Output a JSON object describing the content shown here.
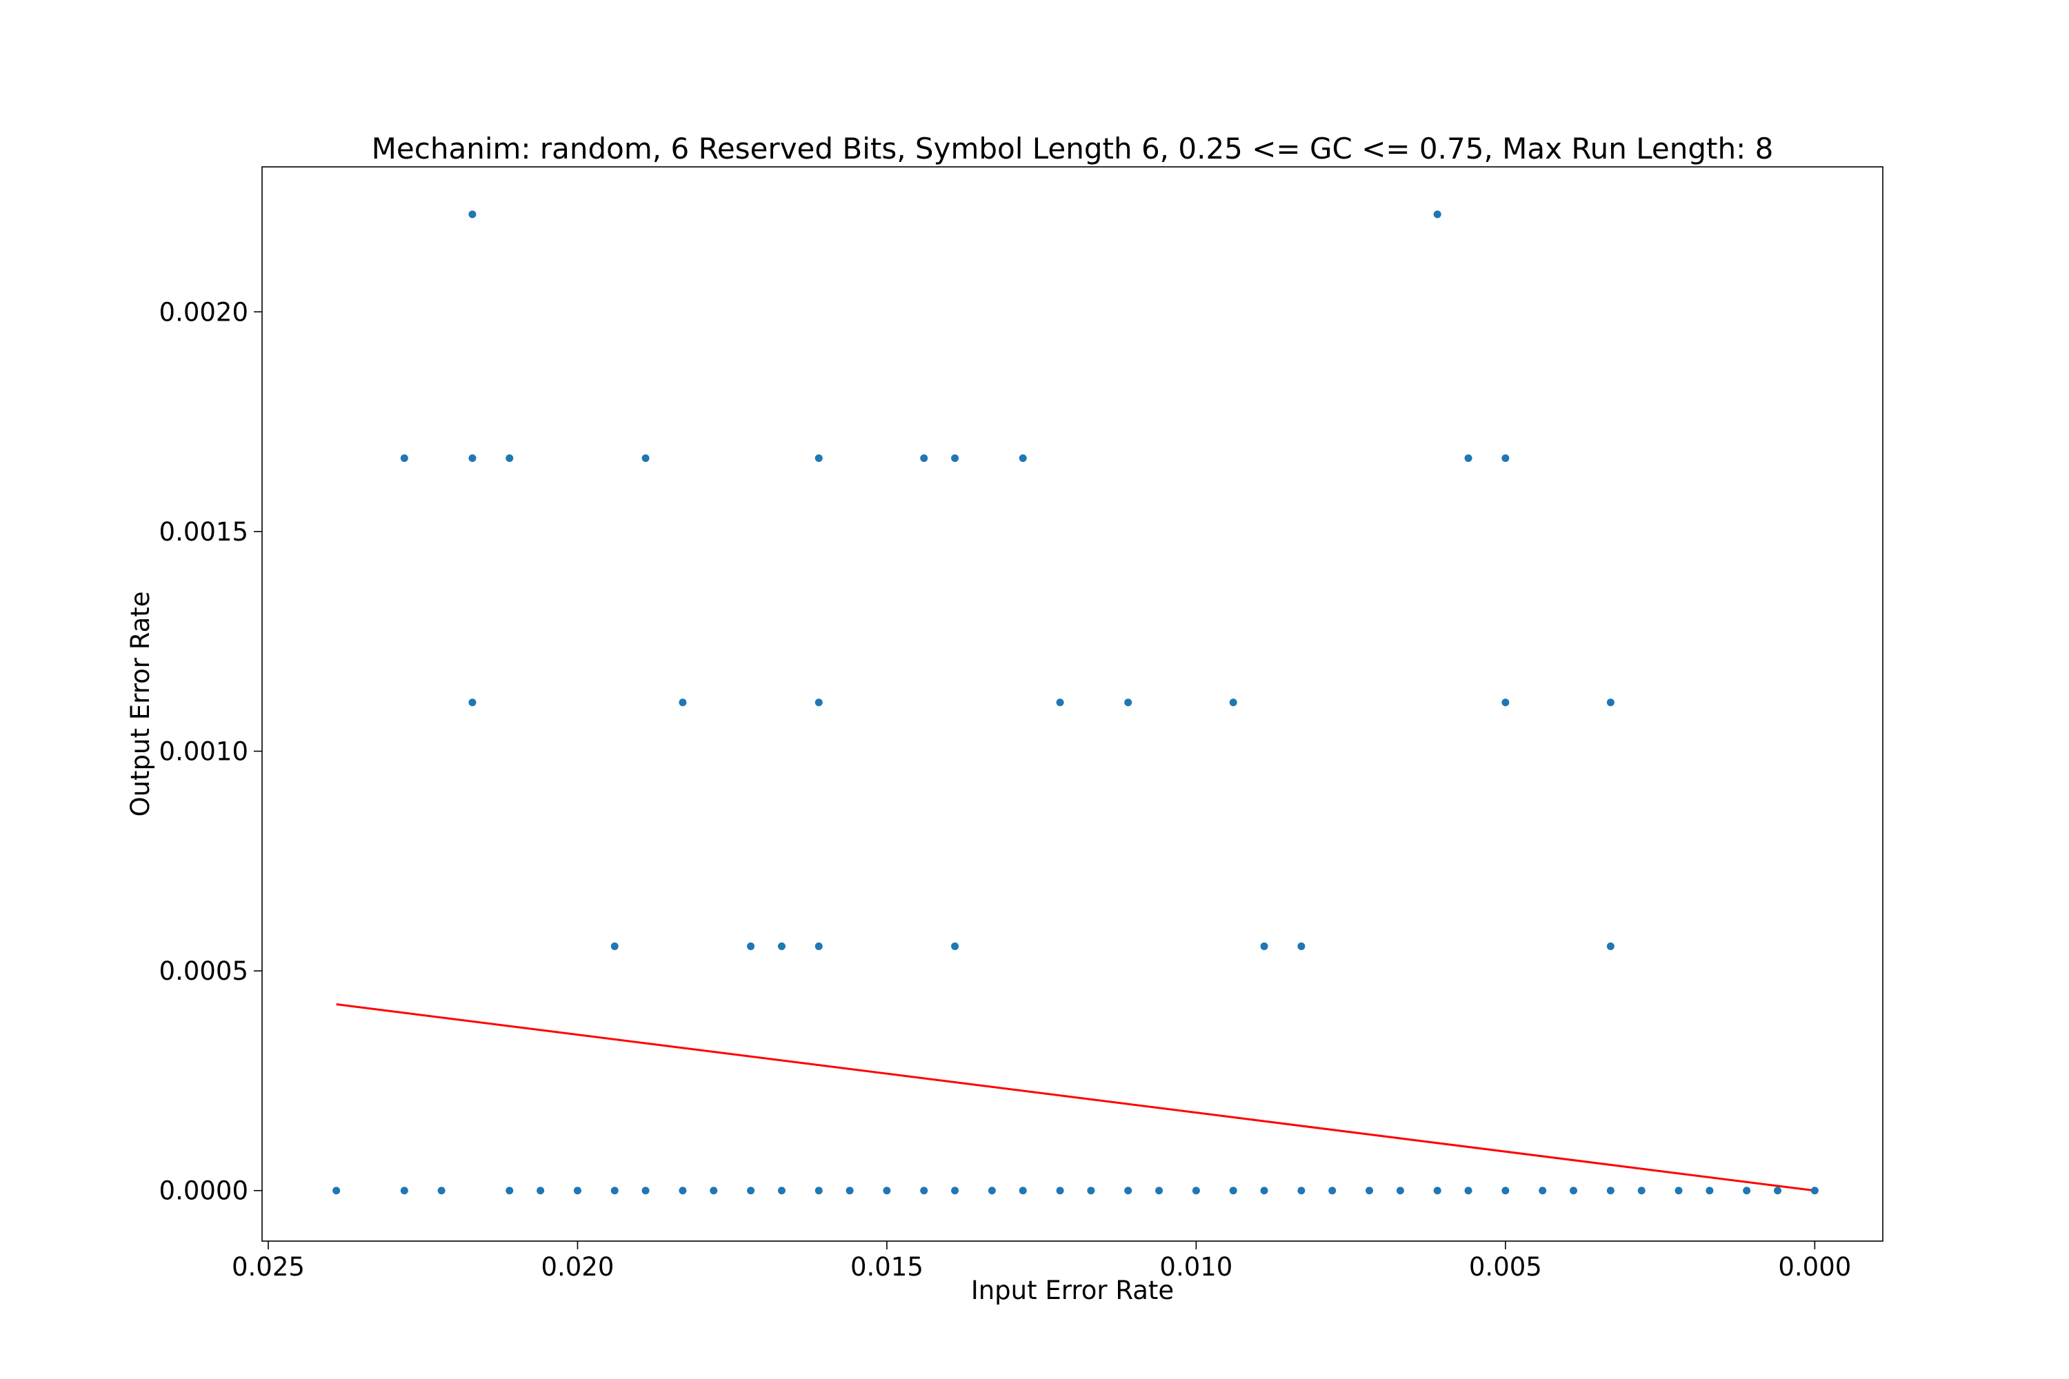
{
  "chart_data": {
    "type": "scatter",
    "title": "Mechanim: random, 6 Reserved Bits, Symbol Length 6, 0.25 <= GC <= 0.75, Max Run Length: 8",
    "xlabel": "Input Error Rate",
    "ylabel": "Output Error Rate",
    "xlim": [
      0.0251,
      -0.0011
    ],
    "ylim": [
      -0.000115,
      0.00233
    ],
    "x_inverted": true,
    "grid": false,
    "xticks": [
      0.025,
      0.02,
      0.015,
      0.01,
      0.005,
      0.0
    ],
    "xtick_labels": [
      "0.025",
      "0.020",
      "0.015",
      "0.010",
      "0.005",
      "0.000"
    ],
    "yticks": [
      0.0,
      0.0005,
      0.001,
      0.0015,
      0.002
    ],
    "ytick_labels": [
      "0.0000",
      "0.0005",
      "0.0010",
      "0.0015",
      "0.0020"
    ],
    "colors": {
      "points": "#1f77b4",
      "trend": "#ff0000"
    },
    "series": [
      {
        "kind": "scatter",
        "points": [
          [
            0.0239,
            0
          ],
          [
            0.0228,
            0
          ],
          [
            0.0222,
            0
          ],
          [
            0.0211,
            0
          ],
          [
            0.0206,
            0
          ],
          [
            0.02,
            0
          ],
          [
            0.0194,
            0
          ],
          [
            0.0189,
            0
          ],
          [
            0.0183,
            0
          ],
          [
            0.0178,
            0
          ],
          [
            0.0172,
            0
          ],
          [
            0.0167,
            0
          ],
          [
            0.0161,
            0
          ],
          [
            0.0156,
            0
          ],
          [
            0.015,
            0
          ],
          [
            0.0144,
            0
          ],
          [
            0.0139,
            0
          ],
          [
            0.0133,
            0
          ],
          [
            0.0128,
            0
          ],
          [
            0.0122,
            0
          ],
          [
            0.0117,
            0
          ],
          [
            0.0111,
            0
          ],
          [
            0.0106,
            0
          ],
          [
            0.01,
            0
          ],
          [
            0.0094,
            0
          ],
          [
            0.0089,
            0
          ],
          [
            0.0083,
            0
          ],
          [
            0.0078,
            0
          ],
          [
            0.0072,
            0
          ],
          [
            0.0067,
            0
          ],
          [
            0.0061,
            0
          ],
          [
            0.0056,
            0
          ],
          [
            0.005,
            0
          ],
          [
            0.0044,
            0
          ],
          [
            0.0039,
            0
          ],
          [
            0.0033,
            0
          ],
          [
            0.0028,
            0
          ],
          [
            0.0022,
            0
          ],
          [
            0.0017,
            0
          ],
          [
            0.0011,
            0
          ],
          [
            0.0006,
            0
          ],
          [
            0.0,
            0
          ],
          [
            0.0194,
            0.000556
          ],
          [
            0.0172,
            0.000556
          ],
          [
            0.0167,
            0.000556
          ],
          [
            0.0161,
            0.000556
          ],
          [
            0.0139,
            0.000556
          ],
          [
            0.0089,
            0.000556
          ],
          [
            0.0083,
            0.000556
          ],
          [
            0.0033,
            0.000556
          ],
          [
            0.0217,
            0.001111
          ],
          [
            0.0183,
            0.001111
          ],
          [
            0.0161,
            0.001111
          ],
          [
            0.0122,
            0.001111
          ],
          [
            0.0111,
            0.001111
          ],
          [
            0.0094,
            0.001111
          ],
          [
            0.005,
            0.001111
          ],
          [
            0.0033,
            0.001111
          ],
          [
            0.0228,
            0.001667
          ],
          [
            0.0217,
            0.001667
          ],
          [
            0.0211,
            0.001667
          ],
          [
            0.0189,
            0.001667
          ],
          [
            0.0161,
            0.001667
          ],
          [
            0.0144,
            0.001667
          ],
          [
            0.0139,
            0.001667
          ],
          [
            0.0128,
            0.001667
          ],
          [
            0.0056,
            0.001667
          ],
          [
            0.005,
            0.001667
          ],
          [
            0.0217,
            0.002222
          ],
          [
            0.0061,
            0.002222
          ]
        ]
      },
      {
        "kind": "line",
        "points": [
          [
            0.0239,
            0.000424
          ],
          [
            0.0,
            0.0
          ]
        ]
      }
    ]
  }
}
